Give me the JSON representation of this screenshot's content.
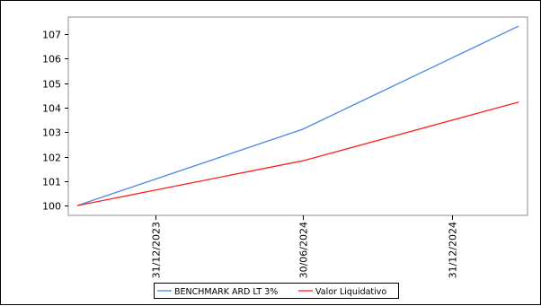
{
  "chart_data": {
    "type": "line",
    "title": "",
    "xlabel": "",
    "ylabel": "",
    "x_ticks": [
      "31/12/2023",
      "30/06/2024",
      "31/12/2024"
    ],
    "x": [
      "2023-09-26",
      "2024-06-30",
      "2025-03-23"
    ],
    "ylim": [
      99.6,
      107.7
    ],
    "y_ticks": [
      100,
      101,
      102,
      103,
      104,
      105,
      106,
      107
    ],
    "grid": false,
    "legend_position": "bottom",
    "series": [
      {
        "name": "BENCHMARK ARD LT 3%",
        "color": "#4a86e8",
        "values": [
          100.0,
          103.12,
          107.33
        ]
      },
      {
        "name": "Valor Liquidativo",
        "color": "#ff2020",
        "values": [
          100.0,
          101.83,
          104.23
        ]
      }
    ]
  }
}
